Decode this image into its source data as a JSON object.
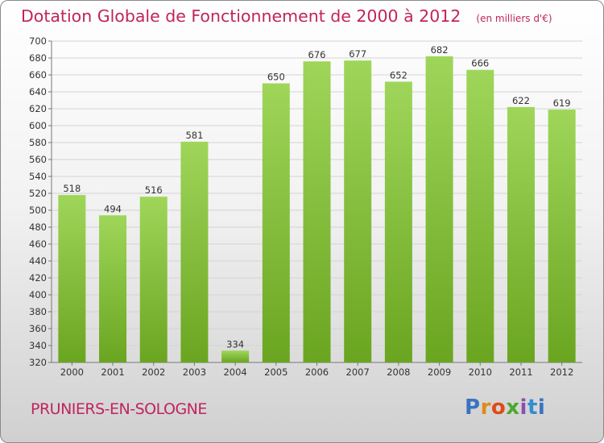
{
  "chart_data": {
    "type": "bar",
    "title": "Dotation Globale de Fonctionnement de 2000 à 2012",
    "subtitle": "(en milliers d'€)",
    "categories": [
      "2000",
      "2001",
      "2002",
      "2003",
      "2004",
      "2005",
      "2006",
      "2007",
      "2008",
      "2009",
      "2010",
      "2011",
      "2012"
    ],
    "values": [
      518,
      494,
      516,
      581,
      334,
      650,
      676,
      677,
      652,
      682,
      666,
      622,
      619
    ],
    "ylim": [
      320,
      700
    ],
    "yticks": [
      320,
      340,
      360,
      380,
      400,
      420,
      440,
      460,
      480,
      500,
      520,
      540,
      560,
      580,
      600,
      620,
      640,
      660,
      680,
      700
    ],
    "grid": true,
    "bar_color_top": "#9fd65a",
    "bar_color_bottom": "#6aa520"
  },
  "footer": {
    "commune": "PRUNIERS-EN-SOLOGNE",
    "logo": "Proxiti"
  },
  "colors": {
    "title": "#c0245e"
  }
}
